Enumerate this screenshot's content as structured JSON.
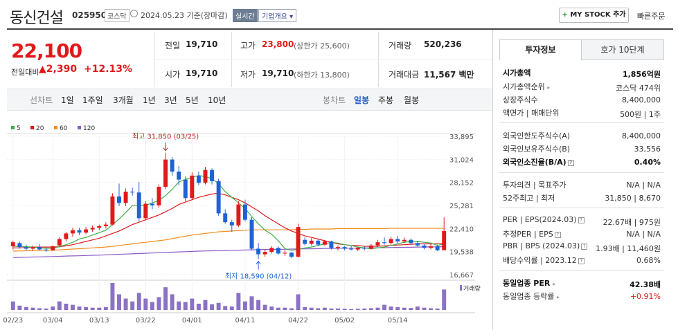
{
  "header": {
    "title": "동신건설",
    "code": "025950",
    "market": "코스닥",
    "date": "2024.05.23 기준(장마감)",
    "realtime_badge": "실시간",
    "overview_button": "기업개요",
    "mystock_button": "MY STOCK 추가",
    "quick_order": "빠른주문"
  },
  "summary": {
    "price": "22,100",
    "change_label": "전일대비",
    "change_value": "2,390",
    "change_pct": "+12.13%",
    "prev_close_label": "전일",
    "prev_close": "19,710",
    "open_label": "시가",
    "open": "19,710",
    "high_label": "고가",
    "high": "23,800",
    "upper_limit": "(상한가 25,600)",
    "low_label": "저가",
    "low": "19,710",
    "lower_limit": "(하한가 13,800)",
    "volume_label": "거래량",
    "volume": "520,236",
    "amount_label": "거래대금",
    "amount": "11,567 백만"
  },
  "period_bar": {
    "line_label": "선차트",
    "periods": [
      "1일",
      "1주일",
      "3개월",
      "1년",
      "3년",
      "5년",
      "10년"
    ],
    "candle_label": "봉차트",
    "candle_types": [
      "일봉",
      "주봉",
      "월봉"
    ],
    "active_candle": "일봉"
  },
  "chart_data": {
    "type": "candlestick",
    "legend": [
      {
        "name": "5",
        "color": "#3cb043"
      },
      {
        "name": "20",
        "color": "#e0191b"
      },
      {
        "name": "60",
        "color": "#f08c1a"
      },
      {
        "name": "120",
        "color": "#8a5cc7"
      }
    ],
    "y_ticks": [
      "33,895",
      "31,024",
      "28,152",
      "25,281",
      "22,410",
      "19,538",
      "16,667"
    ],
    "ylim": [
      16667,
      33895
    ],
    "x_ticks": [
      "02/23",
      "03/04",
      "03/13",
      "03/22",
      "04/01",
      "04/11",
      "04/22",
      "05/02",
      "05/14"
    ],
    "high_annotation": "최고 31,850 (03/25)",
    "low_annotation": "최저 18,590 (04/12)",
    "volume_label": "거래량",
    "up_color": "#e0191b",
    "down_color": "#1f62d6",
    "candles": [
      {
        "o": 20200,
        "h": 20900,
        "l": 19800,
        "c": 20700
      },
      {
        "o": 20600,
        "h": 20800,
        "l": 19900,
        "c": 20100
      },
      {
        "o": 20100,
        "h": 20400,
        "l": 19700,
        "c": 19900
      },
      {
        "o": 19900,
        "h": 20300,
        "l": 19600,
        "c": 20100
      },
      {
        "o": 20100,
        "h": 20500,
        "l": 19700,
        "c": 19800
      },
      {
        "o": 19800,
        "h": 20100,
        "l": 19500,
        "c": 19700
      },
      {
        "o": 19700,
        "h": 20300,
        "l": 19600,
        "c": 20200
      },
      {
        "o": 20300,
        "h": 21300,
        "l": 20100,
        "c": 21100
      },
      {
        "o": 21100,
        "h": 22000,
        "l": 20800,
        "c": 21800
      },
      {
        "o": 21800,
        "h": 22500,
        "l": 21400,
        "c": 22200
      },
      {
        "o": 22200,
        "h": 22500,
        "l": 21600,
        "c": 21900
      },
      {
        "o": 21900,
        "h": 22600,
        "l": 21700,
        "c": 22300
      },
      {
        "o": 22300,
        "h": 22800,
        "l": 22000,
        "c": 22500
      },
      {
        "o": 22500,
        "h": 22900,
        "l": 22200,
        "c": 22700
      },
      {
        "o": 22700,
        "h": 23200,
        "l": 22400,
        "c": 22900
      },
      {
        "o": 22900,
        "h": 26800,
        "l": 22800,
        "c": 26400
      },
      {
        "o": 26400,
        "h": 28000,
        "l": 25200,
        "c": 25600
      },
      {
        "o": 25600,
        "h": 27400,
        "l": 25200,
        "c": 27000
      },
      {
        "o": 27000,
        "h": 27500,
        "l": 26500,
        "c": 26900
      },
      {
        "o": 26900,
        "h": 28200,
        "l": 23300,
        "c": 23700
      },
      {
        "o": 23700,
        "h": 25800,
        "l": 23500,
        "c": 25500
      },
      {
        "o": 25500,
        "h": 26200,
        "l": 24800,
        "c": 25300
      },
      {
        "o": 25300,
        "h": 27900,
        "l": 25000,
        "c": 27600
      },
      {
        "o": 27600,
        "h": 31850,
        "l": 27300,
        "c": 31000
      },
      {
        "o": 31000,
        "h": 31300,
        "l": 29000,
        "c": 29500
      },
      {
        "o": 29500,
        "h": 30200,
        "l": 27800,
        "c": 28500
      },
      {
        "o": 28500,
        "h": 28900,
        "l": 25800,
        "c": 26200
      },
      {
        "o": 26200,
        "h": 29400,
        "l": 26000,
        "c": 29000
      },
      {
        "o": 29000,
        "h": 29500,
        "l": 27800,
        "c": 28100
      },
      {
        "o": 28100,
        "h": 30100,
        "l": 27900,
        "c": 29700
      },
      {
        "o": 29700,
        "h": 29900,
        "l": 27900,
        "c": 28300
      },
      {
        "o": 28300,
        "h": 28600,
        "l": 24000,
        "c": 24300
      },
      {
        "o": 24300,
        "h": 24800,
        "l": 23000,
        "c": 23200
      },
      {
        "o": 23200,
        "h": 23500,
        "l": 22000,
        "c": 22800
      },
      {
        "o": 22800,
        "h": 25800,
        "l": 22600,
        "c": 25400
      },
      {
        "o": 25400,
        "h": 26000,
        "l": 23300,
        "c": 23500
      },
      {
        "o": 23500,
        "h": 23800,
        "l": 19700,
        "c": 19900
      },
      {
        "o": 19900,
        "h": 20600,
        "l": 18590,
        "c": 19200
      },
      {
        "o": 19200,
        "h": 19800,
        "l": 18900,
        "c": 19500
      },
      {
        "o": 19500,
        "h": 20200,
        "l": 19300,
        "c": 20000
      },
      {
        "o": 20000,
        "h": 20200,
        "l": 19100,
        "c": 19300
      },
      {
        "o": 19300,
        "h": 19700,
        "l": 19000,
        "c": 19400
      },
      {
        "o": 19400,
        "h": 19500,
        "l": 18700,
        "c": 18900
      },
      {
        "o": 18900,
        "h": 23000,
        "l": 18800,
        "c": 22600
      },
      {
        "o": 21000,
        "h": 21300,
        "l": 20300,
        "c": 20500
      },
      {
        "o": 20500,
        "h": 21200,
        "l": 20300,
        "c": 20900
      },
      {
        "o": 20900,
        "h": 21100,
        "l": 20200,
        "c": 20400
      },
      {
        "o": 20400,
        "h": 21000,
        "l": 20300,
        "c": 20800
      },
      {
        "o": 20800,
        "h": 20900,
        "l": 19800,
        "c": 20000
      },
      {
        "o": 20000,
        "h": 20300,
        "l": 19700,
        "c": 20100
      },
      {
        "o": 20100,
        "h": 20200,
        "l": 19700,
        "c": 19900
      },
      {
        "o": 19900,
        "h": 20200,
        "l": 19700,
        "c": 19800
      },
      {
        "o": 19800,
        "h": 20100,
        "l": 19600,
        "c": 20000
      },
      {
        "o": 20000,
        "h": 20200,
        "l": 19700,
        "c": 19900
      },
      {
        "o": 19900,
        "h": 20500,
        "l": 19800,
        "c": 20300
      },
      {
        "o": 20300,
        "h": 21000,
        "l": 20100,
        "c": 20700
      },
      {
        "o": 20700,
        "h": 21300,
        "l": 20400,
        "c": 20600
      },
      {
        "o": 20600,
        "h": 21400,
        "l": 20400,
        "c": 21100
      },
      {
        "o": 21100,
        "h": 21500,
        "l": 20600,
        "c": 20800
      },
      {
        "o": 20800,
        "h": 21300,
        "l": 20600,
        "c": 21000
      },
      {
        "o": 21000,
        "h": 21200,
        "l": 20400,
        "c": 20600
      },
      {
        "o": 20600,
        "h": 20900,
        "l": 20100,
        "c": 20300
      },
      {
        "o": 20300,
        "h": 20500,
        "l": 19800,
        "c": 20000
      },
      {
        "o": 20000,
        "h": 20500,
        "l": 19800,
        "c": 20200
      },
      {
        "o": 20200,
        "h": 20400,
        "l": 19600,
        "c": 19710
      },
      {
        "o": 19710,
        "h": 23800,
        "l": 19710,
        "c": 22100
      }
    ],
    "ma5": [
      20200,
      20200,
      20150,
      20100,
      20000,
      19950,
      19950,
      20150,
      20400,
      20700,
      21100,
      21300,
      21600,
      21900,
      22200,
      22900,
      23600,
      24400,
      25300,
      25300,
      25300,
      25600,
      25900,
      26500,
      27300,
      28200,
      28500,
      28800,
      29000,
      28900,
      28600,
      28000,
      27000,
      26300,
      25600,
      24900,
      23900,
      23000,
      22200,
      21700,
      20900,
      19900,
      19700,
      19800,
      20000,
      20100,
      20300,
      20500,
      20700,
      20600,
      20400,
      20300,
      20100,
      20000,
      19900,
      20000,
      20100,
      20300,
      20500,
      20700,
      20800,
      20800,
      20700,
      20600,
      20300,
      20500
    ],
    "ma20": [
      20000,
      20000,
      20050,
      20100,
      20100,
      20100,
      20100,
      20150,
      20250,
      20400,
      20600,
      20800,
      21000,
      21200,
      21500,
      21800,
      22100,
      22500,
      22900,
      23200,
      23500,
      23800,
      24100,
      24500,
      24900,
      25400,
      25700,
      26000,
      26300,
      26500,
      26700,
      26800,
      26600,
      26300,
      26000,
      25600,
      25100,
      24600,
      24000,
      23500,
      23000,
      22500,
      22100,
      21800,
      21500,
      21300,
      21100,
      20900,
      20700,
      20500,
      20400,
      20300,
      20300,
      20200,
      20200,
      20200,
      20250,
      20300,
      20350,
      20400,
      20450,
      20500,
      20500,
      20500,
      20500,
      20600
    ],
    "ma60": [
      19600,
      19620,
      19640,
      19660,
      19680,
      19700,
      19720,
      19750,
      19800,
      19850,
      19900,
      19950,
      20000,
      20050,
      20100,
      20200,
      20300,
      20400,
      20500,
      20600,
      20700,
      20800,
      20900,
      21000,
      21150,
      21300,
      21450,
      21600,
      21700,
      21800,
      21900,
      22000,
      22050,
      22100,
      22150,
      22200,
      22250,
      22250,
      22250,
      22250,
      22250,
      22250,
      22250,
      22300,
      22300,
      22350,
      22350,
      22350,
      22350,
      22400,
      22400,
      22400,
      22400,
      22400,
      22400,
      22400,
      22400,
      22450,
      22450,
      22450,
      22450,
      22450,
      22450,
      22450,
      22450,
      22450
    ],
    "ma120": [
      18800,
      18820,
      18840,
      18860,
      18880,
      18900,
      18920,
      18950,
      18980,
      19000,
      19020,
      19050,
      19080,
      19100,
      19130,
      19160,
      19200,
      19230,
      19260,
      19300,
      19330,
      19360,
      19400,
      19430,
      19460,
      19500,
      19530,
      19560,
      19600,
      19620,
      19640,
      19660,
      19680,
      19700,
      19720,
      19740,
      19760,
      19780,
      19800,
      19810,
      19820,
      19830,
      19850,
      19860,
      19880,
      19890,
      19900,
      19920,
      19930,
      19950,
      19960,
      19970,
      19980,
      20000,
      20010,
      20020,
      20030,
      20050,
      20060,
      20070,
      20080,
      20100,
      20110,
      20120,
      20130,
      20150
    ],
    "volumes": [
      30,
      15,
      10,
      8,
      6,
      5,
      12,
      30,
      22,
      18,
      12,
      10,
      8,
      8,
      10,
      95,
      55,
      40,
      30,
      60,
      40,
      28,
      45,
      80,
      55,
      30,
      28,
      40,
      22,
      35,
      20,
      25,
      14,
      12,
      60,
      30,
      48,
      35,
      18,
      12,
      8,
      8,
      6,
      55,
      10,
      8,
      6,
      8,
      5,
      5,
      4,
      3,
      4,
      5,
      6,
      8,
      18,
      12,
      10,
      8,
      7,
      12,
      8,
      6,
      5,
      72
    ]
  },
  "invest_info": {
    "tabs": [
      "투자정보",
      "호가 10단계"
    ],
    "rows1": [
      {
        "label": "시가총액",
        "value": "1,856억원"
      },
      {
        "label": "시가총액순위",
        "value": "코스닥 474위"
      },
      {
        "label": "상장주식수",
        "value": "8,400,000"
      },
      {
        "label": "액면가 | 매매단위",
        "value": "500원 | 1주"
      }
    ],
    "rows2": [
      {
        "label": "외국인한도주식수(A)",
        "value": "8,400,000"
      },
      {
        "label": "외국인보유주식수(B)",
        "value": "33,556"
      },
      {
        "label": "외국인소진율(B/A)",
        "value": "0.40%"
      }
    ],
    "rows3": [
      {
        "label": "투자의견 | 목표주가",
        "value": "N/A | N/A"
      },
      {
        "label": "52주최고 | 최저",
        "value": "31,850 | 8,670"
      }
    ],
    "rows4": [
      {
        "label": "PER | EPS(2024.03)",
        "value": "22.67배 | 975원"
      },
      {
        "label": "추정PER | EPS",
        "value": "N/A | N/A"
      },
      {
        "label": "PBR | BPS (2024.03)",
        "value": "1.93배 | 11,460원"
      },
      {
        "label": "배당수익률 | 2023.12",
        "value": "0.68%"
      }
    ],
    "rows5": [
      {
        "label": "동일업종 PER",
        "value": "42.38배"
      },
      {
        "label": "동일업종 등락률",
        "value": "+0.91%"
      }
    ]
  }
}
